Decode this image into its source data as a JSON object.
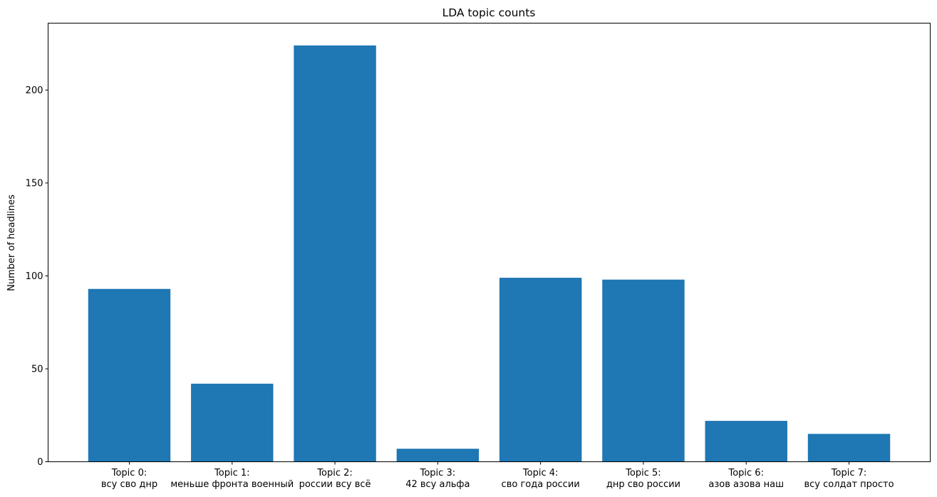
{
  "chart_data": {
    "type": "bar",
    "title": "LDA topic counts",
    "xlabel": "",
    "ylabel": "Number of headlines",
    "ylim": [
      0,
      236
    ],
    "yticks": [
      0,
      50,
      100,
      150,
      200
    ],
    "grid": false,
    "legend": "none",
    "bar_color": "#1f77b4",
    "categories": [
      [
        "Topic 0:",
        "всу сво днр"
      ],
      [
        "Topic 1:",
        "меньше фронта военный"
      ],
      [
        "Topic 2:",
        "россии всу всё"
      ],
      [
        "Topic 3:",
        "42 всу альфа"
      ],
      [
        "Topic 4:",
        "сво года россии"
      ],
      [
        "Topic 5:",
        "днр сво россии"
      ],
      [
        "Topic 6:",
        "азов азова наш"
      ],
      [
        "Topic 7:",
        "всу солдат просто"
      ]
    ],
    "values": [
      93,
      42,
      224,
      7,
      99,
      98,
      22,
      15
    ]
  }
}
